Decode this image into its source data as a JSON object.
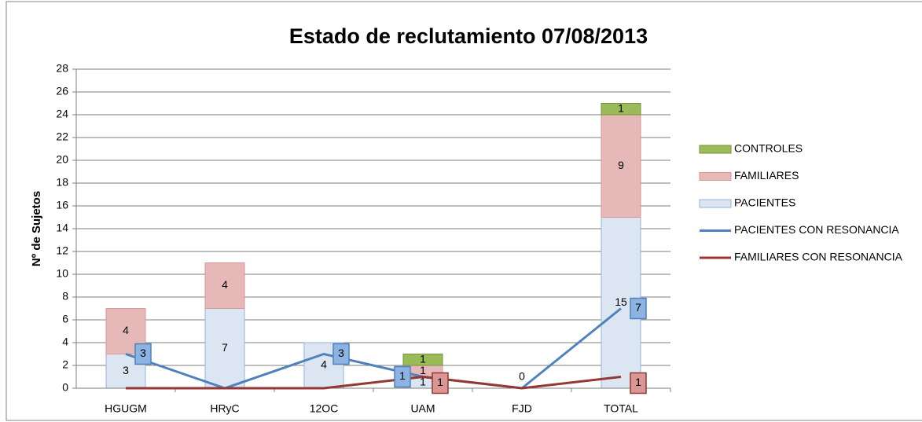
{
  "chart_data": {
    "type": "bar",
    "title": "Estado de reclutamiento 07/08/2013",
    "y_label": "Nº de Sujetos",
    "categories": [
      "HGUGM",
      "HRyC",
      "12OC",
      "UAM",
      "FJD",
      "TOTAL"
    ],
    "stacked": true,
    "series": [
      {
        "name": "PACIENTES",
        "color": "#dce6f2",
        "stroke": "#95b3d7",
        "values": [
          3,
          7,
          4,
          1,
          0,
          15
        ]
      },
      {
        "name": "FAMILIARES",
        "color": "#e6b9b8",
        "stroke": "#d99694",
        "values": [
          4,
          4,
          0,
          1,
          0,
          9
        ]
      },
      {
        "name": "CONTROLES",
        "color": "#9bbb59",
        "stroke": "#77933c",
        "values": [
          0,
          0,
          0,
          1,
          0,
          1
        ]
      }
    ],
    "lines": [
      {
        "name": "PACIENTES CON RESONANCIA",
        "color": "#4f81bd",
        "label_fill": "#8db3e2",
        "values": [
          3,
          0,
          3,
          1,
          0,
          7
        ]
      },
      {
        "name": "FAMILIARES CON RESONANCIA",
        "color": "#953735",
        "label_fill": "#d99694",
        "values": [
          0,
          0,
          0,
          1,
          0,
          1
        ]
      }
    ],
    "ylim": [
      0,
      28
    ],
    "yticks": [
      0,
      2,
      4,
      6,
      8,
      10,
      12,
      14,
      16,
      18,
      20,
      22,
      24,
      26,
      28
    ],
    "grid": true,
    "legend": "right"
  }
}
